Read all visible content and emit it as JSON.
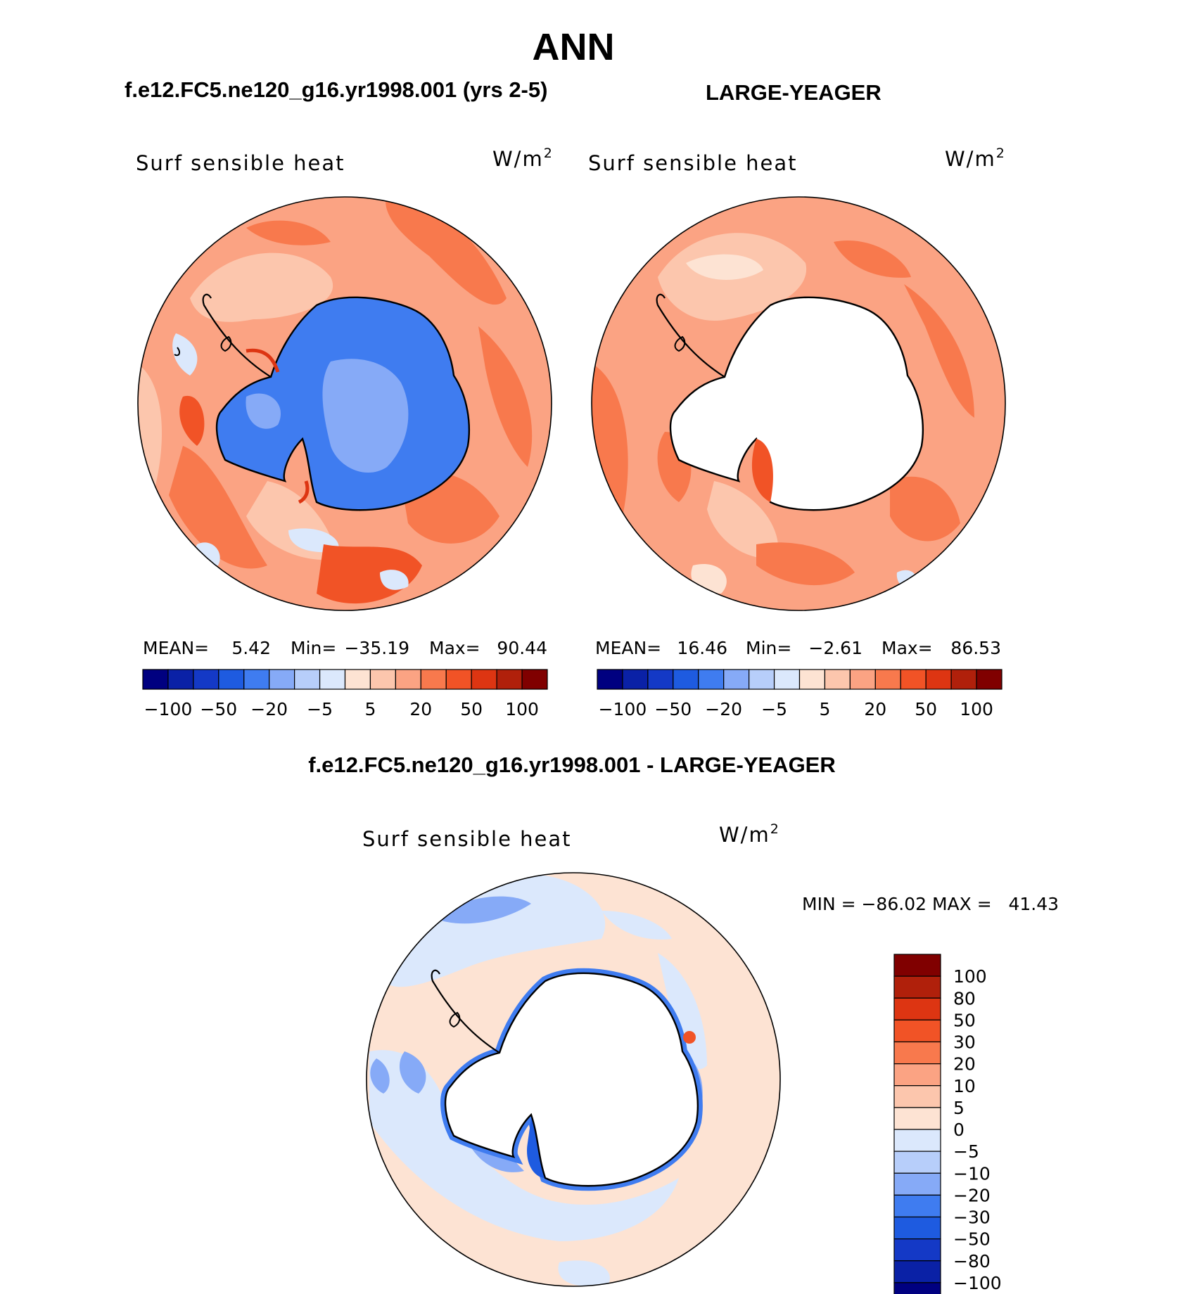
{
  "figure": {
    "title": "ANN",
    "panel_left_header": "f.e12.FC5.ne120_g16.yr1998.001 (yrs 2-5)",
    "panel_right_header": "LARGE-YEAGER",
    "diff_header": "f.e12.FC5.ne120_g16.yr1998.001 - LARGE-YEAGER"
  },
  "panels": [
    {
      "variable": "Surf sensible heat",
      "units_base": "W/m",
      "units_exp": "2",
      "stats": {
        "mean_label": "MEAN=",
        "mean": "5.42",
        "min_label": "Min=",
        "min": "−35.19",
        "max_label": "Max=",
        "max": "90.44"
      }
    },
    {
      "variable": "Surf sensible heat",
      "units_base": "W/m",
      "units_exp": "2",
      "stats": {
        "mean_label": "MEAN=",
        "mean": "16.46",
        "min_label": "Min=",
        "min": "−2.61",
        "max_label": "Max=",
        "max": "86.53"
      }
    }
  ],
  "diff_panel": {
    "variable": "Surf sensible heat",
    "units_base": "W/m",
    "units_exp": "2",
    "minmax": "MIN = −86.02 MAX =   41.43"
  },
  "colorbar_abs": {
    "colors": [
      "#000080",
      "#0a21a6",
      "#1439c6",
      "#1e5be0",
      "#3f7cf0",
      "#86aaf7",
      "#b7cefa",
      "#dbe8fc",
      "#fde3d3",
      "#fcc6ad",
      "#fba383",
      "#f8794d",
      "#f15326",
      "#dd3512",
      "#b0200b",
      "#800000"
    ],
    "labels": [
      "−100",
      "−50",
      "−20",
      "−5",
      "5",
      "20",
      "50",
      "100"
    ]
  },
  "colorbar_diff": {
    "colors": [
      "#000080",
      "#0a21a6",
      "#1439c6",
      "#1e5be0",
      "#3f7cf0",
      "#86aaf7",
      "#b7cefa",
      "#dbe8fc",
      "#fde3d3",
      "#fcc6ad",
      "#fba383",
      "#f8794d",
      "#f15326",
      "#dd3512",
      "#b0200b",
      "#800000"
    ],
    "labels": [
      "100",
      "80",
      "50",
      "30",
      "20",
      "10",
      "5",
      "0",
      "−5",
      "−10",
      "−20",
      "−30",
      "−50",
      "−80",
      "−100"
    ]
  },
  "map_colors": {
    "ocean_mid": "#fba383",
    "ocean_warm": "#f8794d",
    "ocean_hot": "#f15326",
    "ocean_pale": "#fcc6ad",
    "ocean_faint": "#fde3d3",
    "land_blue": "#3f7cf0",
    "land_blue_light": "#86aaf7",
    "diff_base": "#fde3d3",
    "diff_lightblue": "#dbe8fc",
    "diff_blue": "#86aaf7",
    "diff_deep": "#1e5be0"
  }
}
